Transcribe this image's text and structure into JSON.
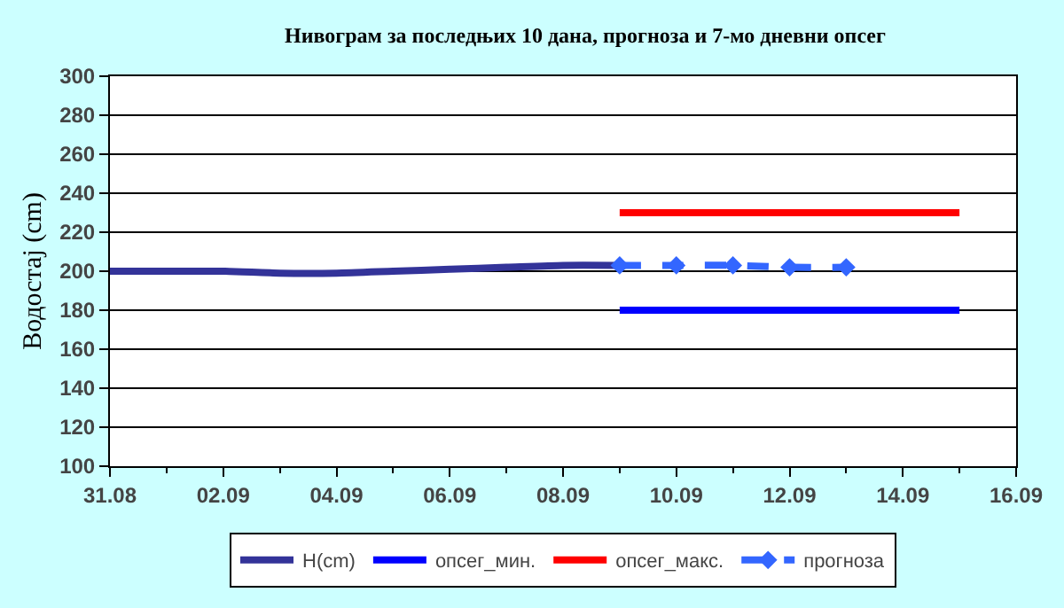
{
  "chart_data": {
    "type": "line",
    "title": "Нивограм за последњих 10 дана, прогноза и 7-мо дневни опсег",
    "ylabel": "Водостај (cm)",
    "xlim": [
      "--08-31",
      "--09-16"
    ],
    "xticks": [
      {
        "value": "--08-31",
        "label": "31.08"
      },
      {
        "value": "--09-02",
        "label": "02.09"
      },
      {
        "value": "--09-04",
        "label": "04.09"
      },
      {
        "value": "--09-06",
        "label": "06.09"
      },
      {
        "value": "--09-08",
        "label": "08.09"
      },
      {
        "value": "--09-10",
        "label": "10.09"
      },
      {
        "value": "--09-12",
        "label": "12.09"
      },
      {
        "value": "--09-14",
        "label": "14.09"
      },
      {
        "value": "--09-16",
        "label": "16.09"
      }
    ],
    "ylim": [
      100,
      300
    ],
    "yticks": [
      100,
      120,
      140,
      160,
      180,
      200,
      220,
      240,
      260,
      280,
      300
    ],
    "grid": "y",
    "legend": "bottom",
    "line_style": "solid",
    "marker": "none",
    "series": [
      {
        "name": "H(cm)",
        "color": "#333399",
        "x": [
          "--08-31",
          "--09-01",
          "--09-02",
          "--09-03",
          "--09-04",
          "--09-05",
          "--09-06",
          "--09-07",
          "--09-08",
          "--09-09"
        ],
        "values": [
          200,
          200,
          200,
          199,
          199,
          200,
          201,
          202,
          203,
          203
        ]
      },
      {
        "name": "опсег_мин.",
        "color": "#0000ff",
        "x": [
          "--09-09",
          "--09-15"
        ],
        "values": [
          180,
          180
        ]
      },
      {
        "name": "опсег_макс.",
        "color": "#ff0000",
        "x": [
          "--09-09",
          "--09-15"
        ],
        "values": [
          230,
          230
        ]
      },
      {
        "name": "прогноза",
        "color": "#3366ff",
        "line_style": "dashed",
        "marker": "diamond",
        "x": [
          "--09-09",
          "--09-10",
          "--09-11",
          "--09-12",
          "--09-13"
        ],
        "values": [
          203,
          203,
          203,
          202,
          202
        ]
      }
    ]
  }
}
